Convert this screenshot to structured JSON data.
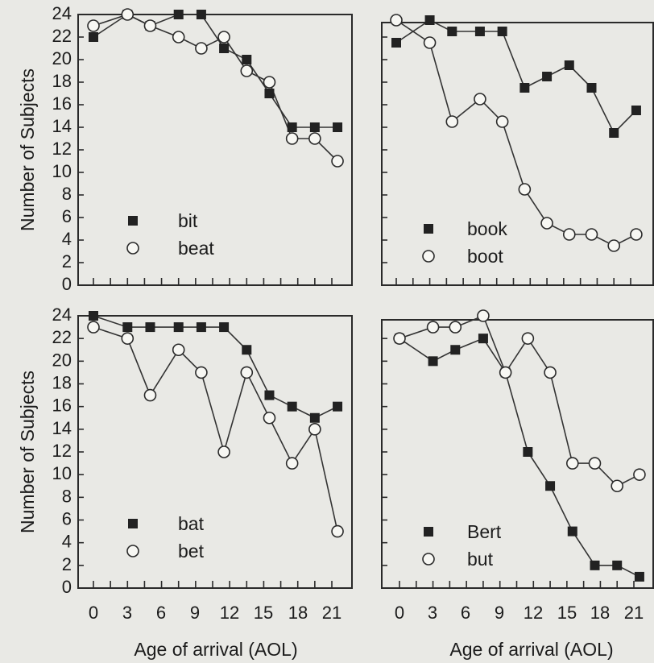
{
  "chart_data": [
    {
      "type": "line",
      "panel": "top-left",
      "ylabel": "Number of Subjects",
      "xlabel": "",
      "ylim": [
        0,
        24
      ],
      "yticks": [
        "0",
        "2",
        "4",
        "6",
        "8",
        "10",
        "12",
        "14",
        "16",
        "18",
        "20",
        "22",
        "24"
      ],
      "xticks": [],
      "legend_position": "bottom-left",
      "series": [
        {
          "name": "bit",
          "marker": "filled-square",
          "x": [
            0,
            3,
            5,
            7.5,
            9.5,
            11.5,
            13.5,
            15.5,
            17.5,
            19.5,
            21.5
          ],
          "values": [
            22,
            24,
            23,
            24,
            24,
            21,
            20,
            17,
            14,
            14,
            14
          ]
        },
        {
          "name": "beat",
          "marker": "open-circle",
          "x": [
            0,
            3,
            5,
            7.5,
            9.5,
            11.5,
            13.5,
            15.5,
            17.5,
            19.5,
            21.5
          ],
          "values": [
            23,
            24,
            23,
            22,
            21,
            22,
            19,
            18,
            13,
            13,
            11
          ]
        }
      ]
    },
    {
      "type": "line",
      "panel": "top-right",
      "ylabel": "",
      "xlabel": "",
      "ylim": [
        0,
        24
      ],
      "yticks": [],
      "xticks": [],
      "legend_position": "bottom-left",
      "series": [
        {
          "name": "book",
          "marker": "filled-square",
          "x": [
            0,
            3,
            5,
            7.5,
            9.5,
            11.5,
            13.5,
            15.5,
            17.5,
            19.5,
            21.5
          ],
          "values": [
            21.5,
            23.5,
            22.5,
            22.5,
            22.5,
            17.5,
            18.5,
            19.5,
            17.5,
            13.5,
            15.5
          ]
        },
        {
          "name": "boot",
          "marker": "open-circle",
          "x": [
            0,
            3,
            5,
            7.5,
            9.5,
            11.5,
            13.5,
            15.5,
            17.5,
            19.5,
            21.5
          ],
          "values": [
            23.5,
            21.5,
            14.5,
            16.5,
            14.5,
            8.5,
            5.5,
            4.5,
            4.5,
            3.5,
            4.5
          ]
        }
      ]
    },
    {
      "type": "line",
      "panel": "bottom-left",
      "ylabel": "Number of Subjects",
      "xlabel": "Age of arrival (AOL)",
      "ylim": [
        0,
        24
      ],
      "yticks": [
        "0",
        "2",
        "4",
        "6",
        "8",
        "10",
        "12",
        "14",
        "16",
        "18",
        "20",
        "22",
        "24"
      ],
      "xticks": [
        "0",
        "3",
        "6",
        "9",
        "12",
        "15",
        "18",
        "21"
      ],
      "legend_position": "bottom-left",
      "series": [
        {
          "name": "bat",
          "marker": "filled-square",
          "x": [
            0,
            3,
            5,
            7.5,
            9.5,
            11.5,
            13.5,
            15.5,
            17.5,
            19.5,
            21.5
          ],
          "values": [
            24,
            23,
            23,
            23,
            23,
            23,
            21,
            17,
            16,
            15,
            16
          ]
        },
        {
          "name": "bet",
          "marker": "open-circle",
          "x": [
            0,
            3,
            5,
            7.5,
            9.5,
            11.5,
            13.5,
            15.5,
            17.5,
            19.5,
            21.5
          ],
          "values": [
            23,
            22,
            17,
            21,
            19,
            12,
            19,
            15,
            11,
            14,
            5
          ]
        }
      ]
    },
    {
      "type": "line",
      "panel": "bottom-right",
      "ylabel": "",
      "xlabel": "Age of arrival (AOL)",
      "ylim": [
        0,
        24
      ],
      "yticks": [],
      "xticks": [
        "0",
        "3",
        "6",
        "9",
        "12",
        "15",
        "18",
        "21"
      ],
      "legend_position": "bottom-left",
      "series": [
        {
          "name": "Bert",
          "marker": "filled-square",
          "x": [
            0,
            3,
            5,
            7.5,
            9.5,
            11.5,
            13.5,
            15.5,
            17.5,
            19.5,
            21.5
          ],
          "values": [
            22,
            20,
            21,
            22,
            19,
            12,
            9,
            5,
            2,
            2,
            1
          ]
        },
        {
          "name": "but",
          "marker": "open-circle",
          "x": [
            0,
            3,
            5,
            7.5,
            9.5,
            11.5,
            13.5,
            15.5,
            17.5,
            19.5,
            21.5
          ],
          "values": [
            22,
            23,
            23,
            24,
            19,
            22,
            19,
            11,
            11,
            9,
            10
          ]
        }
      ]
    }
  ]
}
